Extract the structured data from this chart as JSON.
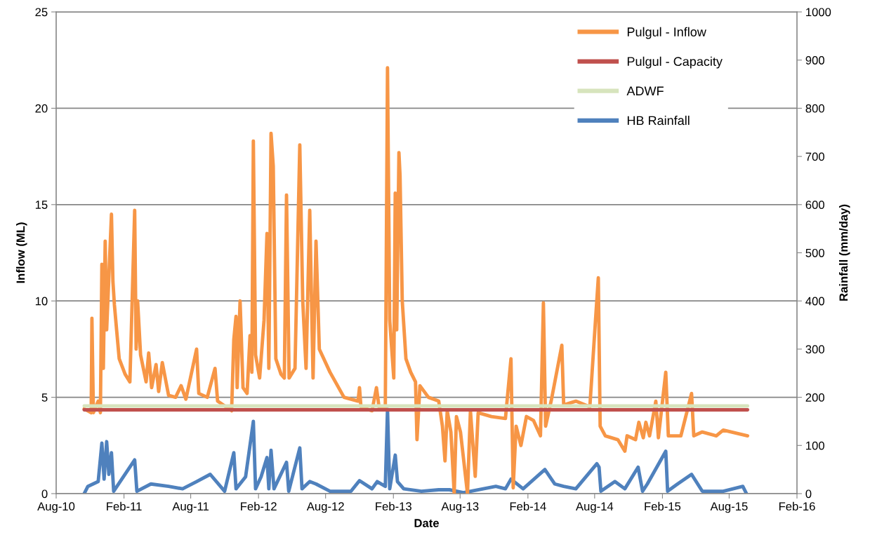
{
  "chart_data": {
    "type": "line",
    "xlabel": "Date",
    "ylabel": "Inflow (ML)",
    "y2label": "Rainfall (mm/day)",
    "xlim": [
      "2010-08",
      "2016-02"
    ],
    "xticks": [
      {
        "value": "2010-08",
        "label": "Aug-10"
      },
      {
        "value": "2011-02",
        "label": "Feb-11"
      },
      {
        "value": "2011-08",
        "label": "Aug-11"
      },
      {
        "value": "2012-02",
        "label": "Feb-12"
      },
      {
        "value": "2012-08",
        "label": "Aug-12"
      },
      {
        "value": "2013-02",
        "label": "Feb-13"
      },
      {
        "value": "2013-08",
        "label": "Aug-13"
      },
      {
        "value": "2014-02",
        "label": "Feb-14"
      },
      {
        "value": "2014-08",
        "label": "Aug-14"
      },
      {
        "value": "2015-02",
        "label": "Feb-15"
      },
      {
        "value": "2015-08",
        "label": "Aug-15"
      },
      {
        "value": "2016-02",
        "label": "Feb-16"
      }
    ],
    "ylim": [
      0,
      25
    ],
    "yticks": [
      0,
      5,
      10,
      15,
      20,
      25
    ],
    "y2lim": [
      0,
      1000
    ],
    "y2ticks": [
      0,
      100,
      200,
      300,
      400,
      500,
      600,
      700,
      800,
      900,
      1000
    ],
    "grid": "y",
    "legend": "top right",
    "marker": "none",
    "line_style": "solid",
    "series": [
      {
        "name": "Pulgul - Inflow",
        "color": "#f79646",
        "x": [
          "2010-10-16",
          "2010-11-04",
          "2010-11-06",
          "2010-11-10",
          "2010-11-23",
          "2010-11-29",
          "2010-12-03",
          "2010-12-07",
          "2010-12-12",
          "2010-12-16",
          "2010-12-29",
          "2011-01-02",
          "2011-01-06",
          "2011-01-12",
          "2011-01-19",
          "2011-02-04",
          "2011-02-17",
          "2011-03-02",
          "2011-03-06",
          "2011-03-10",
          "2011-03-18",
          "2011-04-02",
          "2011-04-09",
          "2011-04-17",
          "2011-04-29",
          "2011-05-06",
          "2011-05-16",
          "2011-06-02",
          "2011-06-21",
          "2011-07-06",
          "2011-07-19",
          "2011-08-17",
          "2011-08-23",
          "2011-09-15",
          "2011-10-06",
          "2011-10-13",
          "2011-11-20",
          "2011-11-26",
          "2011-12-02",
          "2011-12-05",
          "2011-12-13",
          "2011-12-21",
          "2012-01-01",
          "2012-01-09",
          "2012-01-14",
          "2012-01-18",
          "2012-01-24",
          "2012-02-04",
          "2012-02-16",
          "2012-02-24",
          "2012-02-29",
          "2012-03-06",
          "2012-03-12",
          "2012-03-19",
          "2012-04-02",
          "2012-04-11",
          "2012-04-17",
          "2012-04-24",
          "2012-05-10",
          "2012-05-23",
          "2012-05-31",
          "2012-06-09",
          "2012-06-19",
          "2012-06-28",
          "2012-07-06",
          "2012-07-15",
          "2012-08-13",
          "2012-09-20",
          "2012-10-28",
          "2012-11-01",
          "2012-11-05",
          "2012-12-05",
          "2012-12-17",
          "2012-12-24",
          "2013-01-10",
          "2013-01-16",
          "2013-01-22",
          "2013-02-02",
          "2013-02-06",
          "2013-02-10",
          "2013-02-16",
          "2013-02-19",
          "2013-02-25",
          "2013-03-07",
          "2013-03-20",
          "2013-04-02",
          "2013-04-06",
          "2013-04-14",
          "2013-05-07",
          "2013-06-04",
          "2013-06-14",
          "2013-06-21",
          "2013-06-27",
          "2013-07-07",
          "2013-07-16",
          "2013-07-22",
          "2013-08-02",
          "2013-08-21",
          "2013-08-29",
          "2013-09-11",
          "2013-09-19",
          "2013-10-25",
          "2013-12-02",
          "2013-12-17",
          "2013-12-23",
          "2013-12-31",
          "2014-01-13",
          "2014-01-28",
          "2014-02-16",
          "2014-03-07",
          "2014-03-15",
          "2014-03-21",
          "2014-04-05",
          "2014-05-04",
          "2014-05-09",
          "2014-06-11",
          "2014-07-19",
          "2014-08-03",
          "2014-08-11",
          "2014-08-16",
          "2014-08-30",
          "2014-10-03",
          "2014-10-22",
          "2014-10-28",
          "2014-11-20",
          "2014-11-29",
          "2014-12-11",
          "2014-12-18",
          "2014-12-28",
          "2015-01-14",
          "2015-01-21",
          "2015-02-10",
          "2015-02-17",
          "2015-03-23",
          "2015-04-21",
          "2015-04-27",
          "2015-05-20",
          "2015-06-27",
          "2015-07-16",
          "2015-09-20"
        ],
        "values": [
          4.4,
          4.2,
          9.1,
          4.2,
          4.8,
          4.2,
          11.9,
          6.5,
          13.1,
          8.5,
          14.5,
          11,
          9.8,
          8.5,
          7.0,
          6.2,
          5.8,
          14.7,
          7.5,
          10.0,
          7.2,
          5.8,
          7.3,
          5.5,
          6.7,
          5.3,
          6.8,
          5.1,
          5.0,
          5.6,
          4.9,
          7.5,
          5.2,
          5.0,
          6.5,
          4.8,
          4.3,
          8.0,
          9.2,
          5.5,
          10.0,
          5.5,
          5.2,
          8.2,
          6.3,
          18.3,
          7.2,
          6.0,
          9.0,
          13.5,
          6.5,
          18.7,
          17.0,
          7.0,
          6.2,
          6.0,
          15.5,
          6.0,
          6.5,
          18.1,
          10.0,
          6.5,
          14.7,
          6.0,
          13.1,
          7.5,
          6.3,
          5.0,
          4.8,
          5.5,
          4.5,
          4.3,
          5.5,
          4.5,
          4.4,
          22.1,
          9.0,
          6.0,
          15.6,
          8.5,
          17.7,
          16.5,
          10.0,
          7.0,
          6.3,
          5.8,
          2.8,
          5.6,
          5.0,
          4.8,
          3.5,
          1.7,
          4.3,
          3.2,
          0,
          4.0,
          3.2,
          0,
          4.3,
          0.9,
          4.2,
          4.0,
          3.9,
          7.0,
          0.3,
          3.5,
          2.5,
          4.0,
          3.8,
          3.0,
          9.9,
          3.5,
          4.8,
          7.7,
          4.6,
          4.8,
          4.5,
          8.9,
          11.2,
          3.5,
          3.0,
          2.8,
          2.2,
          3.0,
          2.8,
          3.7,
          2.9,
          3.7,
          3.0,
          4.8,
          2.9,
          6.3,
          3.0,
          3.0,
          5.2,
          3.0,
          3.2,
          3.0,
          3.3,
          3.0
        ]
      },
      {
        "name": "Pulgul - Capacity",
        "color": "#c0504d",
        "x": [
          "2010-10-16",
          "2015-09-20"
        ],
        "values": [
          4.35,
          4.35
        ]
      },
      {
        "name": "ADWF",
        "color": "#d7e4bd",
        "x": [
          "2010-10-16",
          "2015-09-20"
        ],
        "values": [
          4.55,
          4.55
        ]
      },
      {
        "name": "HB Rainfall",
        "color": "#4f81bd",
        "axis": "y2",
        "x": [
          "2010-10-16",
          "2010-10-26",
          "2010-11-23",
          "2010-12-03",
          "2010-12-09",
          "2010-12-16",
          "2010-12-22",
          "2010-12-29",
          "2011-01-04",
          "2011-03-02",
          "2011-03-08",
          "2011-04-15",
          "2011-06-02",
          "2011-07-10",
          "2011-08-17",
          "2011-09-23",
          "2011-11-01",
          "2011-11-26",
          "2011-12-02",
          "2011-12-28",
          "2012-01-18",
          "2012-01-24",
          "2012-02-08",
          "2012-02-24",
          "2012-02-29",
          "2012-03-06",
          "2012-03-14",
          "2012-04-17",
          "2012-04-23",
          "2012-05-23",
          "2012-05-29",
          "2012-06-19",
          "2012-07-06",
          "2012-08-13",
          "2012-10-09",
          "2012-11-01",
          "2012-12-05",
          "2012-12-19",
          "2013-01-10",
          "2013-01-16",
          "2013-01-22",
          "2013-02-06",
          "2013-02-12",
          "2013-03-01",
          "2013-04-18",
          "2013-06-04",
          "2013-07-03",
          "2013-08-10",
          "2013-11-06",
          "2013-12-02",
          "2013-12-17",
          "2014-01-19",
          "2014-03-19",
          "2014-04-15",
          "2014-05-09",
          "2014-06-11",
          "2014-08-07",
          "2014-08-13",
          "2014-08-18",
          "2014-09-25",
          "2014-10-22",
          "2014-11-27",
          "2014-12-09",
          "2014-12-22",
          "2015-02-10",
          "2015-02-15",
          "2015-03-14",
          "2015-04-21",
          "2015-05-20",
          "2015-07-16",
          "2015-09-07",
          "2015-09-17"
        ],
        "values": [
          0,
          15,
          25,
          105,
          30,
          108,
          40,
          85,
          5,
          70,
          5,
          20,
          15,
          10,
          25,
          40,
          5,
          85,
          10,
          35,
          150,
          10,
          35,
          75,
          10,
          90,
          10,
          65,
          5,
          95,
          10,
          25,
          20,
          5,
          5,
          27,
          10,
          25,
          15,
          175,
          10,
          80,
          25,
          10,
          5,
          8,
          8,
          2,
          15,
          10,
          30,
          10,
          50,
          20,
          15,
          10,
          62,
          55,
          5,
          25,
          10,
          55,
          5,
          20,
          88,
          5,
          20,
          40,
          5,
          5,
          15,
          0
        ]
      }
    ]
  }
}
